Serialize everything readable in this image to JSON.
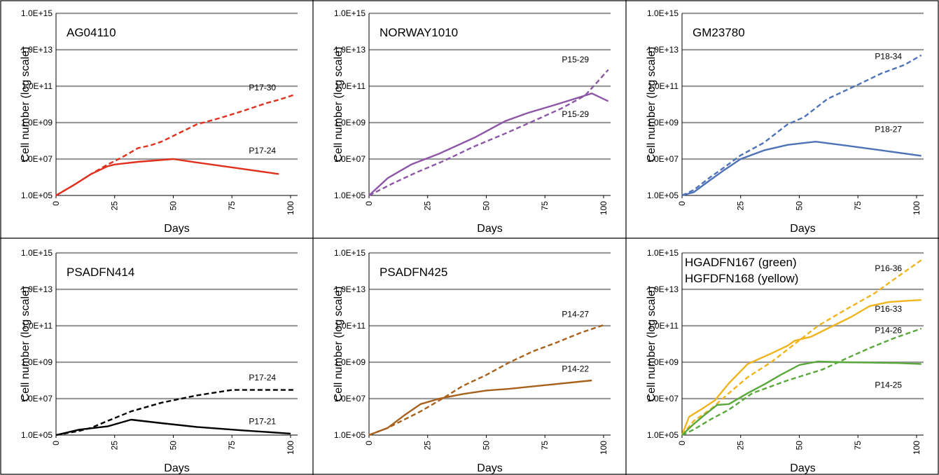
{
  "chart_data": [
    {
      "type": "line",
      "title": "AG04110",
      "xlabel": "Days",
      "ylabel": "Cell number (log scale)",
      "xlim": [
        0,
        103
      ],
      "ylim": [
        100000,
        1000000000000000
      ],
      "yscale": "log",
      "x_ticks": [
        "0",
        "25",
        "50",
        "75",
        "100"
      ],
      "y_ticks": [
        "1.0E+05",
        "1.0E+07",
        "1.0E+09",
        "1.0E+11",
        "1.0E+13",
        "1.0E+15"
      ],
      "grid": "horizontal",
      "series": [
        {
          "name": "",
          "color": "#e0301e",
          "style": "dashed",
          "x": [
            0,
            8,
            15,
            22,
            28,
            35,
            40,
            45,
            52,
            60,
            70,
            80,
            90,
            95,
            102
          ],
          "y": [
            100000,
            400000,
            1500000,
            5000000,
            12000000,
            40000000,
            55000000,
            90000000,
            250000000,
            800000000,
            1800000000,
            4500000000,
            12000000000,
            18000000000,
            35000000000
          ]
        },
        {
          "name": "",
          "color": "#e0301e",
          "style": "solid",
          "x": [
            0,
            8,
            15,
            22,
            25,
            35,
            50,
            60,
            75,
            95
          ],
          "y": [
            100000,
            400000,
            1500000,
            4000000,
            5000000,
            7000000,
            10000000,
            6500000,
            3500000,
            1500000
          ]
        }
      ],
      "annotations": [
        {
          "text": "P17-30",
          "x": 88,
          "y": 60000000000
        },
        {
          "text": "P17-24",
          "x": 88,
          "y": 20000000
        }
      ]
    },
    {
      "type": "line",
      "title": "NORWAY1010",
      "xlabel": "Days",
      "ylabel": "Cell number (log scale)",
      "xlim": [
        0,
        103
      ],
      "ylim": [
        100000,
        1000000000000000
      ],
      "yscale": "log",
      "x_ticks": [
        "0",
        "25",
        "50",
        "75",
        "100"
      ],
      "y_ticks": [
        "1.0E+05",
        "1.0E+07",
        "1.0E+09",
        "1.0E+11",
        "1.0E+13",
        "1.0E+15"
      ],
      "grid": "horizontal",
      "series": [
        {
          "name": "",
          "color": "#8e56a6",
          "style": "dashed",
          "x": [
            0,
            10,
            20,
            32,
            45,
            58,
            70,
            82,
            92,
            97,
            102
          ],
          "y": [
            100000,
            450000,
            1800000,
            8000000,
            50000000,
            250000000,
            1200000000,
            6000000000,
            30000000000,
            150000000000,
            800000000000
          ]
        },
        {
          "name": "",
          "color": "#8e56a6",
          "style": "solid",
          "x": [
            0,
            8,
            18,
            30,
            45,
            58,
            68,
            80,
            95,
            102
          ],
          "y": [
            100000,
            900000,
            5000000,
            20000000,
            150000000,
            1200000000,
            3500000000,
            10000000000,
            40000000000,
            15000000000
          ]
        }
      ],
      "annotations": [
        {
          "text": "P15-29",
          "x": 88,
          "y": 2000000000000
        },
        {
          "text": "P15-29",
          "x": 88,
          "y": 2000000000
        }
      ]
    },
    {
      "type": "line",
      "title": "GM23780",
      "xlabel": "Days",
      "ylabel": "Cell number (log scale)",
      "xlim": [
        0,
        103
      ],
      "ylim": [
        100000,
        1000000000000000
      ],
      "yscale": "log",
      "x_ticks": [
        "0",
        "25",
        "50",
        "75",
        "100"
      ],
      "y_ticks": [
        "1.0E+05",
        "1.0E+07",
        "1.0E+09",
        "1.0E+11",
        "1.0E+13",
        "1.0E+15"
      ],
      "grid": "horizontal",
      "series": [
        {
          "name": "",
          "color": "#4e72b8",
          "style": "dashed",
          "x": [
            0,
            5,
            12,
            18,
            25,
            35,
            45,
            52,
            62,
            75,
            85,
            95,
            102
          ],
          "y": [
            100000,
            200000,
            1000000,
            3500000,
            16000000,
            80000000,
            800000000,
            2000000000,
            20000000000,
            120000000000,
            500000000000,
            1500000000000,
            5000000000000
          ]
        },
        {
          "name": "",
          "color": "#4e72b8",
          "style": "solid",
          "x": [
            0,
            5,
            12,
            18,
            25,
            35,
            45,
            57,
            70,
            85,
            102
          ],
          "y": [
            100000,
            150000,
            700000,
            2500000,
            10000000,
            30000000,
            60000000,
            90000000,
            55000000,
            30000000,
            15000000
          ]
        }
      ],
      "annotations": [
        {
          "text": "P18-34",
          "x": 88,
          "y": 3000000000000
        },
        {
          "text": "P18-27",
          "x": 88,
          "y": 300000000
        }
      ]
    },
    {
      "type": "line",
      "title": "PSADFN414",
      "xlabel": "Days",
      "ylabel": "Cell number (log scale)",
      "xlim": [
        0,
        103
      ],
      "ylim": [
        100000,
        1000000000000000
      ],
      "yscale": "log",
      "x_ticks": [
        "0",
        "25",
        "50",
        "75",
        "100"
      ],
      "y_ticks": [
        "1.0E+05",
        "1.0E+07",
        "1.0E+09",
        "1.0E+11",
        "1.0E+13",
        "1.0E+15"
      ],
      "grid": "horizontal",
      "series": [
        {
          "name": "",
          "color": "#000000",
          "style": "dashed",
          "x": [
            0,
            10,
            15,
            22,
            32,
            45,
            60,
            75,
            80,
            90,
            102
          ],
          "y": [
            100000,
            170000,
            250000,
            600000,
            2000000,
            6000000,
            15000000,
            30000000,
            30000000,
            30000000,
            30000000
          ]
        },
        {
          "name": "",
          "color": "#000000",
          "style": "solid",
          "x": [
            0,
            10,
            22,
            32,
            45,
            60,
            80,
            100
          ],
          "y": [
            100000,
            200000,
            300000,
            700000,
            450000,
            280000,
            180000,
            120000
          ]
        }
      ],
      "annotations": [
        {
          "text": "P17-24",
          "x": 88,
          "y": 100000000
        },
        {
          "text": "P17-21",
          "x": 88,
          "y": 400000
        }
      ]
    },
    {
      "type": "line",
      "title": "PSADFN425",
      "xlabel": "Days",
      "ylabel": "Cell number (log scale)",
      "xlim": [
        0,
        103
      ],
      "ylim": [
        100000,
        1000000000000000
      ],
      "yscale": "log",
      "x_ticks": [
        "0",
        "25",
        "50",
        "75",
        "100"
      ],
      "y_ticks": [
        "1.0E+05",
        "1.0E+07",
        "1.0E+09",
        "1.0E+11",
        "1.0E+13",
        "1.0E+15"
      ],
      "grid": "horizontal",
      "series": [
        {
          "name": "",
          "color": "#a8611c",
          "style": "dashed",
          "x": [
            0,
            8,
            15,
            22,
            30,
            40,
            50,
            60,
            70,
            80,
            90,
            100
          ],
          "y": [
            100000,
            250000,
            700000,
            2000000,
            8000000,
            50000000,
            200000000,
            1000000000,
            4000000000,
            12000000000,
            40000000000,
            110000000000
          ]
        },
        {
          "name": "",
          "color": "#a8611c",
          "style": "solid",
          "x": [
            0,
            8,
            15,
            22,
            30,
            40,
            50,
            60,
            75,
            95
          ],
          "y": [
            100000,
            250000,
            1200000,
            5000000,
            10000000,
            18000000,
            28000000,
            35000000,
            55000000,
            100000000
          ]
        }
      ],
      "annotations": [
        {
          "text": "P14-27",
          "x": 88,
          "y": 300000000000
        },
        {
          "text": "P14-22",
          "x": 88,
          "y": 300000000
        }
      ]
    },
    {
      "type": "line",
      "title": "HGADFN167 (green)\nHGFDFN168 (yellow)",
      "title_lines": [
        "HGADFN167 (green)",
        "HGFDFN168 (yellow)"
      ],
      "xlabel": "Days",
      "ylabel": "Cell number (log scale)",
      "xlim": [
        0,
        103
      ],
      "ylim": [
        100000,
        1000000000000000
      ],
      "yscale": "log",
      "x_ticks": [
        "0",
        "25",
        "50",
        "75",
        "100"
      ],
      "y_ticks": [
        "1.0E+05",
        "1.0E+07",
        "1.0E+09",
        "1.0E+11",
        "1.0E+13",
        "1.0E+15"
      ],
      "grid": "horizontal",
      "series": [
        {
          "name": "",
          "color": "#f0b41c",
          "style": "dashed",
          "x": [
            0,
            5,
            12,
            20,
            28,
            38,
            48,
            58,
            70,
            82,
            92,
            102
          ],
          "y": [
            100000,
            600000,
            2500000,
            20000000,
            150000000,
            1000000000,
            10000000000,
            100000000000,
            800000000000,
            6000000000000,
            50000000000000,
            400000000000000
          ]
        },
        {
          "name": "",
          "color": "#f0b41c",
          "style": "solid",
          "x": [
            0,
            3,
            8,
            14,
            20,
            28,
            38,
            45,
            48,
            55,
            62,
            72,
            80,
            88,
            95,
            102
          ],
          "y": [
            100000,
            1000000,
            2500000,
            8000000,
            70000000,
            800000000,
            3000000000,
            8000000000,
            15000000000,
            25000000000,
            70000000000,
            300000000000,
            1200000000000,
            2000000000000,
            2300000000000,
            2600000000000
          ]
        },
        {
          "name": "",
          "color": "#5aa83c",
          "style": "dashed",
          "x": [
            0,
            5,
            12,
            20,
            30,
            45,
            60,
            70,
            80,
            90,
            102
          ],
          "y": [
            100000,
            200000,
            700000,
            2500000,
            20000000,
            100000000,
            400000000,
            1600000000,
            6000000000,
            20000000000,
            70000000000
          ]
        },
        {
          "name": "",
          "color": "#5aa83c",
          "style": "solid",
          "x": [
            0,
            5,
            10,
            15,
            20,
            28,
            35,
            42,
            50,
            58,
            68,
            80,
            92,
            102
          ],
          "y": [
            100000,
            400000,
            1400000,
            4500000,
            5000000,
            20000000,
            60000000,
            200000000,
            700000000,
            1100000000,
            1000000000,
            950000000,
            900000000,
            800000000
          ]
        }
      ],
      "annotations": [
        {
          "text": "P16-36",
          "x": 88,
          "y": 100000000000000
        },
        {
          "text": "P16-33",
          "x": 88,
          "y": 600000000000
        },
        {
          "text": "P14-26",
          "x": 88,
          "y": 40000000000
        },
        {
          "text": "P14-25",
          "x": 88,
          "y": 40000000
        }
      ]
    }
  ]
}
